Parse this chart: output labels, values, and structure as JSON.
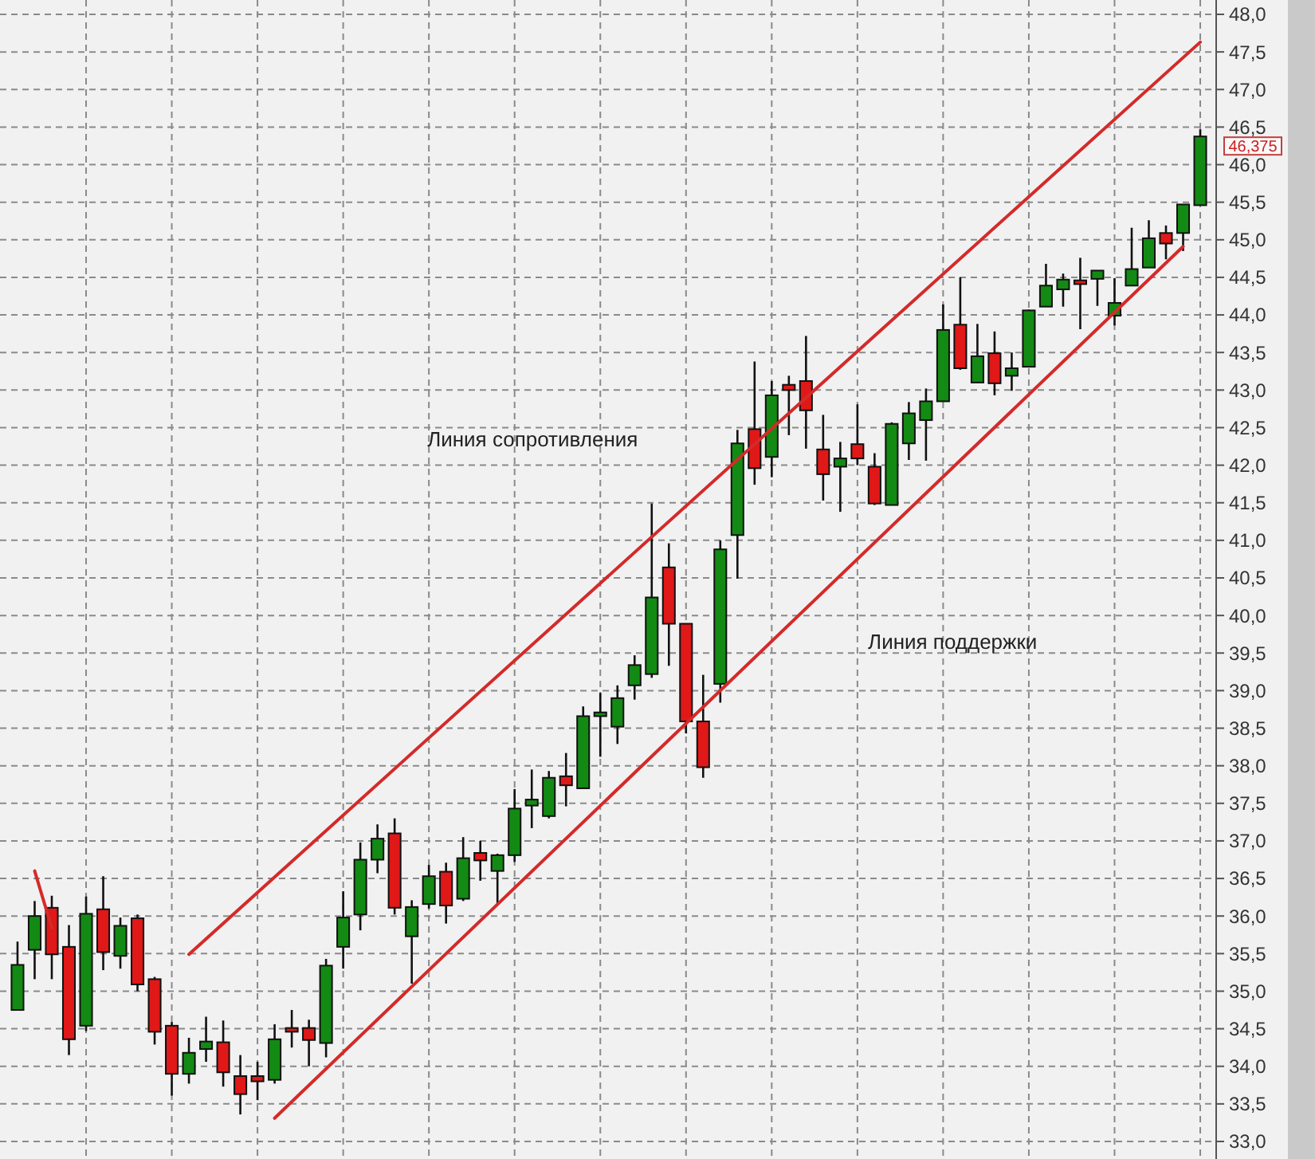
{
  "chart_data": {
    "type": "candlestick",
    "categories": [
      null,
      null,
      null,
      null,
      null,
      null,
      null,
      null,
      null,
      null,
      null,
      null,
      null,
      null,
      null,
      null,
      null,
      null,
      null,
      null,
      null,
      null,
      null,
      null,
      null,
      null,
      null,
      null,
      null,
      null,
      null,
      null,
      null,
      null,
      null,
      null,
      null,
      null,
      null,
      null,
      null,
      null,
      null,
      null,
      null,
      null,
      null,
      null,
      null,
      null,
      null,
      null,
      null,
      null,
      null,
      null,
      null,
      null,
      null,
      null,
      null,
      null,
      null,
      null,
      null,
      null,
      null,
      null,
      null,
      null
    ],
    "ohlc": [
      [
        34.75,
        35.66,
        34.75,
        35.35
      ],
      [
        35.55,
        36.2,
        35.16,
        36.0
      ],
      [
        36.11,
        36.27,
        35.16,
        35.49
      ],
      [
        35.59,
        35.88,
        34.15,
        34.36
      ],
      [
        34.54,
        36.26,
        34.47,
        36.03
      ],
      [
        36.09,
        36.53,
        35.28,
        35.52
      ],
      [
        35.47,
        35.98,
        35.3,
        35.87
      ],
      [
        35.97,
        36.02,
        35.0,
        35.09
      ],
      [
        35.16,
        35.19,
        34.29,
        34.46
      ],
      [
        34.54,
        34.59,
        33.61,
        33.9
      ],
      [
        33.9,
        34.38,
        33.77,
        34.18
      ],
      [
        34.23,
        34.66,
        34.06,
        34.33
      ],
      [
        34.32,
        34.61,
        33.73,
        33.92
      ],
      [
        33.87,
        34.15,
        33.36,
        33.63
      ],
      [
        33.87,
        34.06,
        33.55,
        33.8
      ],
      [
        33.82,
        34.56,
        33.77,
        34.36
      ],
      [
        34.51,
        34.75,
        34.25,
        34.46
      ],
      [
        34.51,
        34.62,
        34.0,
        34.35
      ],
      [
        34.31,
        35.43,
        34.12,
        35.34
      ],
      [
        35.59,
        36.33,
        35.3,
        35.98
      ],
      [
        36.02,
        36.98,
        35.81,
        36.75
      ],
      [
        36.75,
        37.22,
        36.57,
        37.03
      ],
      [
        37.1,
        37.3,
        36.02,
        36.11
      ],
      [
        35.73,
        36.21,
        35.1,
        36.12
      ],
      [
        36.16,
        36.68,
        36.1,
        36.53
      ],
      [
        36.59,
        36.71,
        35.9,
        36.14
      ],
      [
        36.23,
        37.05,
        36.2,
        36.77
      ],
      [
        36.84,
        37.0,
        36.47,
        36.74
      ],
      [
        36.6,
        36.83,
        36.15,
        36.81
      ],
      [
        36.81,
        37.69,
        36.72,
        37.43
      ],
      [
        37.47,
        37.95,
        37.17,
        37.55
      ],
      [
        37.33,
        37.93,
        37.3,
        37.84
      ],
      [
        37.86,
        38.17,
        37.46,
        37.74
      ],
      [
        37.7,
        38.79,
        37.7,
        38.66
      ],
      [
        38.66,
        38.97,
        38.12,
        38.71
      ],
      [
        38.52,
        39.07,
        38.29,
        38.9
      ],
      [
        39.07,
        39.47,
        38.88,
        39.34
      ],
      [
        39.22,
        41.49,
        39.17,
        40.24
      ],
      [
        40.64,
        40.96,
        39.33,
        39.89
      ],
      [
        39.89,
        39.89,
        38.43,
        38.59
      ],
      [
        38.59,
        39.21,
        37.84,
        37.98
      ],
      [
        39.09,
        41.0,
        38.84,
        40.88
      ],
      [
        41.07,
        42.47,
        40.49,
        42.29
      ],
      [
        42.48,
        43.38,
        41.74,
        41.96
      ],
      [
        42.11,
        43.12,
        41.84,
        42.93
      ],
      [
        43.07,
        43.19,
        42.4,
        43.0
      ],
      [
        43.12,
        43.72,
        42.22,
        42.73
      ],
      [
        42.21,
        42.67,
        41.53,
        41.88
      ],
      [
        41.98,
        42.31,
        41.38,
        42.09
      ],
      [
        42.28,
        42.81,
        42.0,
        42.09
      ],
      [
        41.98,
        42.16,
        41.47,
        41.49
      ],
      [
        41.47,
        42.57,
        41.47,
        42.55
      ],
      [
        42.29,
        42.84,
        42.07,
        42.69
      ],
      [
        42.6,
        43.02,
        42.06,
        42.85
      ],
      [
        42.85,
        44.14,
        42.85,
        43.8
      ],
      [
        43.87,
        44.5,
        43.27,
        43.29
      ],
      [
        43.1,
        43.88,
        43.1,
        43.45
      ],
      [
        43.49,
        43.78,
        42.93,
        43.09
      ],
      [
        43.19,
        43.5,
        42.99,
        43.29
      ],
      [
        43.31,
        44.07,
        43.31,
        44.06
      ],
      [
        44.11,
        44.68,
        44.11,
        44.39
      ],
      [
        44.34,
        44.55,
        44.11,
        44.47
      ],
      [
        44.46,
        44.76,
        43.81,
        44.41
      ],
      [
        44.48,
        44.59,
        44.12,
        44.59
      ],
      [
        43.99,
        44.49,
        43.86,
        44.16
      ],
      [
        44.39,
        45.16,
        44.39,
        44.61
      ],
      [
        44.63,
        45.26,
        44.63,
        45.02
      ],
      [
        45.09,
        45.19,
        44.74,
        44.95
      ],
      [
        45.09,
        45.47,
        44.85,
        45.47
      ],
      [
        45.46,
        46.47,
        45.46,
        46.375
      ]
    ],
    "colors": [
      "#138a13",
      "#138a13",
      "#e01818",
      "#e01818",
      "#138a13",
      "#e01818",
      "#138a13",
      "#e01818",
      "#e01818",
      "#e01818",
      "#138a13",
      "#138a13",
      "#e01818",
      "#e01818",
      "#e01818",
      "#138a13",
      "#e01818",
      "#e01818",
      "#138a13",
      "#138a13",
      "#138a13",
      "#138a13",
      "#e01818",
      "#138a13",
      "#138a13",
      "#e01818",
      "#138a13",
      "#e01818",
      "#138a13",
      "#138a13",
      "#138a13",
      "#138a13",
      "#e01818",
      "#138a13",
      "#138a13",
      "#138a13",
      "#138a13",
      "#138a13",
      "#e01818",
      "#e01818",
      "#e01818",
      "#138a13",
      "#138a13",
      "#e01818",
      "#138a13",
      "#e01818",
      "#e01818",
      "#e01818",
      "#138a13",
      "#e01818",
      "#e01818",
      "#138a13",
      "#138a13",
      "#138a13",
      "#138a13",
      "#e01818",
      "#138a13",
      "#e01818",
      "#138a13",
      "#138a13",
      "#138a13",
      "#138a13",
      "#e01818",
      "#138a13",
      "#138a13",
      "#138a13",
      "#138a13",
      "#e01818",
      "#138a13",
      "#138a13"
    ],
    "series": [
      {
        "type": "line",
        "color": "#d42a2a",
        "values": [
          null,
          null,
          null,
          null,
          null,
          null,
          null,
          null,
          null,
          null,
          35.49,
          null,
          null,
          null,
          null,
          null,
          null,
          null,
          null,
          null,
          null,
          null,
          null,
          null,
          null,
          null,
          null,
          null,
          null,
          null,
          null,
          null,
          null,
          null,
          null,
          null,
          null,
          null,
          null,
          null,
          null,
          null,
          null,
          null,
          null,
          null,
          null,
          null,
          null,
          null,
          null,
          null,
          null,
          null,
          null,
          null,
          null,
          null,
          null,
          null,
          null,
          null,
          null,
          null,
          null,
          null,
          null,
          null,
          null,
          47.63
        ]
      },
      {
        "type": "line",
        "color": "#d42a2a",
        "values": [
          null,
          null,
          null,
          null,
          null,
          null,
          null,
          null,
          null,
          null,
          null,
          null,
          null,
          null,
          null,
          33.31,
          null,
          null,
          null,
          null,
          null,
          null,
          null,
          null,
          null,
          null,
          null,
          null,
          null,
          null,
          null,
          null,
          null,
          null,
          null,
          null,
          null,
          null,
          null,
          null,
          null,
          null,
          null,
          null,
          null,
          null,
          null,
          null,
          null,
          null,
          null,
          null,
          null,
          null,
          null,
          null,
          null,
          null,
          null,
          null,
          null,
          null,
          null,
          null,
          null,
          null,
          null,
          null,
          44.91,
          null
        ]
      },
      {
        "type": "line",
        "color": "#d42a2a",
        "values": [
          null,
          36.6,
          35.84,
          null,
          null,
          null,
          null,
          null,
          null,
          null,
          null,
          null,
          null,
          null,
          null,
          null,
          null,
          null,
          null,
          null,
          null,
          null,
          null,
          null,
          null,
          null,
          null,
          null,
          null,
          null,
          null,
          null,
          null,
          null,
          null,
          null,
          null,
          null,
          null,
          null,
          null,
          null,
          null,
          null,
          null,
          null,
          null,
          null,
          null,
          null,
          null,
          null,
          null,
          null,
          null,
          null,
          null,
          null,
          null,
          null,
          null,
          null,
          null,
          null,
          null,
          null,
          null,
          null,
          null,
          null
        ]
      }
    ],
    "annotations": [
      "Линия сопротивления",
      "Линия поддержки",
      "46,375"
    ],
    "ylim": [
      33,
      48
    ],
    "yticks": [
      {
        "value": 33,
        "label": "33,0"
      },
      {
        "value": 33.5,
        "label": "33,5"
      },
      {
        "value": 34,
        "label": "34,0"
      },
      {
        "value": 34.5,
        "label": "34,5"
      },
      {
        "value": 35,
        "label": "35,0"
      },
      {
        "value": 35.5,
        "label": "35,5"
      },
      {
        "value": 36,
        "label": "36,0"
      },
      {
        "value": 36.5,
        "label": "36,5"
      },
      {
        "value": 37,
        "label": "37,0"
      },
      {
        "value": 37.5,
        "label": "37,5"
      },
      {
        "value": 38,
        "label": "38,0"
      },
      {
        "value": 38.5,
        "label": "38,5"
      },
      {
        "value": 39,
        "label": "39,0"
      },
      {
        "value": 39.5,
        "label": "39,5"
      },
      {
        "value": 40,
        "label": "40,0"
      },
      {
        "value": 40.5,
        "label": "40,5"
      },
      {
        "value": 41,
        "label": "41,0"
      },
      {
        "value": 41.5,
        "label": "41,5"
      },
      {
        "value": 42,
        "label": "42,0"
      },
      {
        "value": 42.5,
        "label": "42,5"
      },
      {
        "value": 43,
        "label": "43,0"
      },
      {
        "value": 43.5,
        "label": "43,5"
      },
      {
        "value": 44,
        "label": "44,0"
      },
      {
        "value": 44.5,
        "label": "44,5"
      },
      {
        "value": 45,
        "label": "45,0"
      },
      {
        "value": 45.5,
        "label": "45,5"
      },
      {
        "value": 46,
        "label": "46,0"
      },
      {
        "value": 46.5,
        "label": "46,5"
      },
      {
        "value": 47,
        "label": "47,0"
      },
      {
        "value": 47.5,
        "label": "47,5"
      },
      {
        "value": 48,
        "label": "48,0"
      }
    ],
    "grid": true,
    "tick_labels": "y"
  }
}
